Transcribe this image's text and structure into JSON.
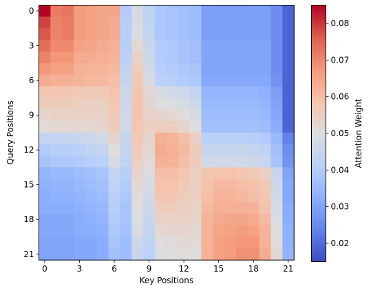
{
  "chart_data": {
    "type": "heatmap",
    "title": "",
    "xlabel": "Key Positions",
    "ylabel": "Query Positions",
    "colorbar_label": "Attention Weight",
    "colormap": "coolwarm",
    "vmin": 0.015,
    "vmax": 0.085,
    "x_ticks": [
      "0",
      "3",
      "6",
      "9",
      "12",
      "15",
      "18",
      "21"
    ],
    "y_ticks": [
      "0",
      "3",
      "6",
      "9",
      "12",
      "15",
      "18",
      "21"
    ],
    "colorbar_ticks": [
      "0.02",
      "0.03",
      "0.04",
      "0.05",
      "0.06",
      "0.07",
      "0.08"
    ],
    "rows": 22,
    "cols": 22,
    "matrix": [
      [
        0.085,
        0.072,
        0.073,
        0.067,
        0.066,
        0.065,
        0.065,
        0.04,
        0.048,
        0.043,
        0.039,
        0.038,
        0.037,
        0.036,
        0.029,
        0.029,
        0.029,
        0.029,
        0.029,
        0.029,
        0.026,
        0.019
      ],
      [
        0.079,
        0.071,
        0.072,
        0.067,
        0.066,
        0.065,
        0.064,
        0.041,
        0.048,
        0.043,
        0.039,
        0.038,
        0.037,
        0.036,
        0.029,
        0.029,
        0.029,
        0.029,
        0.029,
        0.029,
        0.026,
        0.019
      ],
      [
        0.077,
        0.071,
        0.072,
        0.067,
        0.066,
        0.065,
        0.064,
        0.041,
        0.049,
        0.044,
        0.039,
        0.038,
        0.037,
        0.036,
        0.029,
        0.029,
        0.029,
        0.029,
        0.029,
        0.029,
        0.026,
        0.019
      ],
      [
        0.074,
        0.07,
        0.07,
        0.066,
        0.065,
        0.064,
        0.063,
        0.041,
        0.052,
        0.045,
        0.04,
        0.039,
        0.038,
        0.037,
        0.03,
        0.03,
        0.03,
        0.03,
        0.03,
        0.03,
        0.026,
        0.019
      ],
      [
        0.071,
        0.068,
        0.068,
        0.064,
        0.064,
        0.063,
        0.062,
        0.042,
        0.054,
        0.046,
        0.04,
        0.039,
        0.038,
        0.037,
        0.03,
        0.03,
        0.03,
        0.03,
        0.03,
        0.03,
        0.026,
        0.019
      ],
      [
        0.068,
        0.066,
        0.066,
        0.063,
        0.062,
        0.062,
        0.061,
        0.043,
        0.056,
        0.047,
        0.041,
        0.04,
        0.039,
        0.038,
        0.03,
        0.03,
        0.03,
        0.03,
        0.03,
        0.03,
        0.026,
        0.019
      ],
      [
        0.064,
        0.063,
        0.063,
        0.062,
        0.061,
        0.061,
        0.06,
        0.044,
        0.057,
        0.048,
        0.042,
        0.041,
        0.04,
        0.039,
        0.031,
        0.031,
        0.031,
        0.031,
        0.031,
        0.031,
        0.027,
        0.019
      ],
      [
        0.058,
        0.058,
        0.058,
        0.057,
        0.057,
        0.057,
        0.059,
        0.046,
        0.058,
        0.052,
        0.048,
        0.047,
        0.046,
        0.044,
        0.034,
        0.034,
        0.034,
        0.034,
        0.034,
        0.033,
        0.029,
        0.019
      ],
      [
        0.056,
        0.056,
        0.056,
        0.055,
        0.055,
        0.055,
        0.058,
        0.046,
        0.058,
        0.053,
        0.05,
        0.049,
        0.048,
        0.046,
        0.035,
        0.035,
        0.035,
        0.035,
        0.035,
        0.034,
        0.03,
        0.019
      ],
      [
        0.053,
        0.054,
        0.054,
        0.054,
        0.054,
        0.054,
        0.057,
        0.047,
        0.058,
        0.054,
        0.053,
        0.052,
        0.051,
        0.048,
        0.036,
        0.036,
        0.036,
        0.036,
        0.036,
        0.035,
        0.031,
        0.019
      ],
      [
        0.051,
        0.052,
        0.052,
        0.052,
        0.052,
        0.053,
        0.056,
        0.047,
        0.058,
        0.055,
        0.056,
        0.055,
        0.053,
        0.05,
        0.037,
        0.037,
        0.037,
        0.037,
        0.037,
        0.036,
        0.032,
        0.019
      ],
      [
        0.044,
        0.044,
        0.044,
        0.045,
        0.046,
        0.047,
        0.053,
        0.045,
        0.057,
        0.053,
        0.063,
        0.062,
        0.06,
        0.055,
        0.042,
        0.042,
        0.042,
        0.042,
        0.041,
        0.04,
        0.035,
        0.024
      ],
      [
        0.04,
        0.041,
        0.041,
        0.042,
        0.043,
        0.044,
        0.05,
        0.044,
        0.056,
        0.052,
        0.064,
        0.063,
        0.061,
        0.056,
        0.045,
        0.045,
        0.045,
        0.045,
        0.044,
        0.043,
        0.037,
        0.026
      ],
      [
        0.038,
        0.039,
        0.039,
        0.04,
        0.041,
        0.042,
        0.048,
        0.043,
        0.055,
        0.051,
        0.063,
        0.062,
        0.06,
        0.056,
        0.047,
        0.047,
        0.047,
        0.047,
        0.046,
        0.045,
        0.038,
        0.027
      ],
      [
        0.034,
        0.035,
        0.035,
        0.036,
        0.037,
        0.038,
        0.044,
        0.041,
        0.053,
        0.049,
        0.06,
        0.06,
        0.058,
        0.055,
        0.058,
        0.059,
        0.059,
        0.058,
        0.057,
        0.055,
        0.045,
        0.03
      ],
      [
        0.033,
        0.034,
        0.034,
        0.035,
        0.036,
        0.037,
        0.043,
        0.04,
        0.052,
        0.048,
        0.059,
        0.059,
        0.057,
        0.055,
        0.059,
        0.061,
        0.061,
        0.06,
        0.059,
        0.057,
        0.046,
        0.031
      ],
      [
        0.032,
        0.033,
        0.033,
        0.034,
        0.035,
        0.036,
        0.042,
        0.039,
        0.051,
        0.047,
        0.058,
        0.058,
        0.056,
        0.055,
        0.06,
        0.062,
        0.062,
        0.061,
        0.06,
        0.058,
        0.047,
        0.031
      ],
      [
        0.032,
        0.032,
        0.032,
        0.033,
        0.034,
        0.035,
        0.041,
        0.038,
        0.05,
        0.046,
        0.056,
        0.056,
        0.055,
        0.054,
        0.061,
        0.063,
        0.063,
        0.063,
        0.062,
        0.059,
        0.048,
        0.032
      ],
      [
        0.031,
        0.031,
        0.031,
        0.032,
        0.033,
        0.034,
        0.04,
        0.038,
        0.049,
        0.045,
        0.054,
        0.054,
        0.054,
        0.053,
        0.062,
        0.064,
        0.065,
        0.065,
        0.064,
        0.061,
        0.049,
        0.032
      ],
      [
        0.031,
        0.031,
        0.031,
        0.032,
        0.032,
        0.033,
        0.039,
        0.037,
        0.048,
        0.044,
        0.052,
        0.053,
        0.053,
        0.052,
        0.062,
        0.065,
        0.066,
        0.067,
        0.066,
        0.062,
        0.05,
        0.033
      ],
      [
        0.03,
        0.03,
        0.03,
        0.031,
        0.031,
        0.032,
        0.038,
        0.036,
        0.046,
        0.043,
        0.05,
        0.051,
        0.052,
        0.051,
        0.062,
        0.066,
        0.067,
        0.068,
        0.068,
        0.063,
        0.051,
        0.033
      ],
      [
        0.03,
        0.03,
        0.03,
        0.031,
        0.031,
        0.032,
        0.037,
        0.036,
        0.045,
        0.042,
        0.049,
        0.05,
        0.051,
        0.05,
        0.062,
        0.066,
        0.067,
        0.069,
        0.069,
        0.064,
        0.052,
        0.034
      ]
    ]
  }
}
